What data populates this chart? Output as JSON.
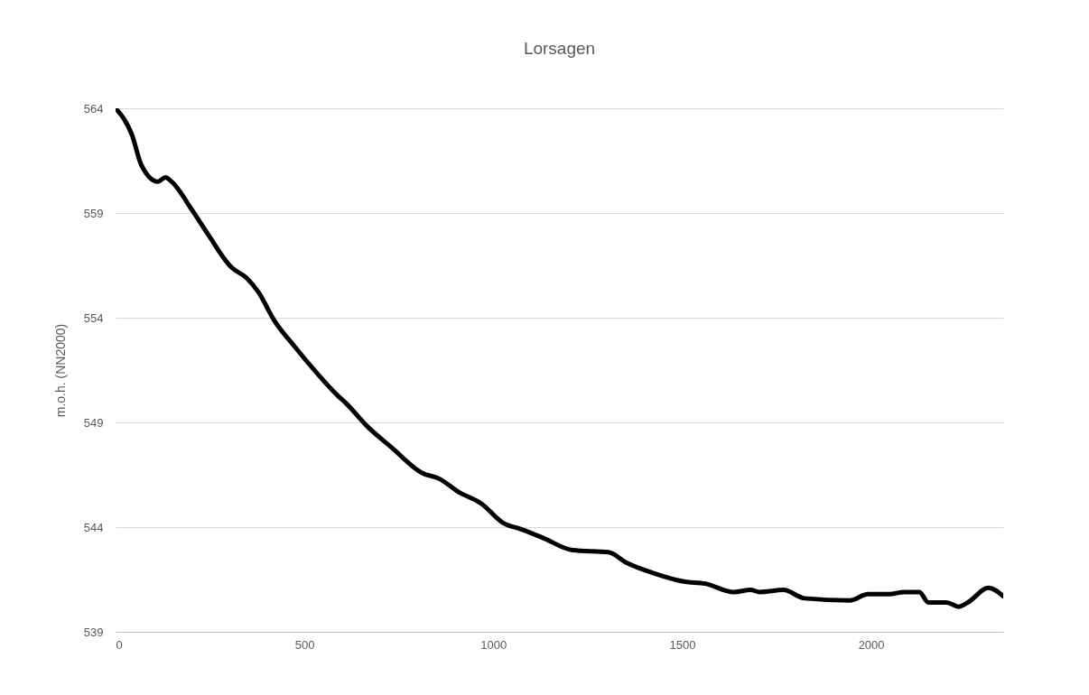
{
  "chart_data": {
    "type": "line",
    "title": "Lorsagen",
    "ylabel": "m.o.h. (NN2000)",
    "x": [
      0,
      44,
      68,
      112,
      132,
      148,
      204,
      244,
      307,
      347,
      379,
      419,
      475,
      531,
      587,
      611,
      667,
      731,
      810,
      858,
      906,
      970,
      1026,
      1074,
      1130,
      1210,
      1305,
      1353,
      1425,
      1505,
      1561,
      1637,
      1681,
      1705,
      1768,
      1824,
      1944,
      1992,
      2048,
      2088,
      2128,
      2152,
      2200,
      2232,
      2256,
      2311,
      2350
    ],
    "series": [
      {
        "color": "#000000",
        "values": [
          564.0,
          562.7,
          561.3,
          560.5,
          560.7,
          560.5,
          559.1,
          558.0,
          556.4,
          555.9,
          555.2,
          553.9,
          552.6,
          551.4,
          550.3,
          549.9,
          548.8,
          547.8,
          546.6,
          546.3,
          545.7,
          545.1,
          544.2,
          543.9,
          543.5,
          542.9,
          542.8,
          542.3,
          541.8,
          541.4,
          541.3,
          540.9,
          541.0,
          540.9,
          541.0,
          540.6,
          540.5,
          540.8,
          540.8,
          540.9,
          540.9,
          540.4,
          540.4,
          540.2,
          540.4,
          541.1,
          540.7
        ]
      }
    ],
    "xlim": [
      0,
      2350
    ],
    "xticks": [
      0,
      500,
      1000,
      1500,
      2000
    ],
    "ylim": [
      539,
      564
    ],
    "yticks": [
      539,
      544,
      549,
      554,
      559,
      564
    ],
    "grid": "y",
    "marker": "none",
    "line_style": "solid"
  }
}
